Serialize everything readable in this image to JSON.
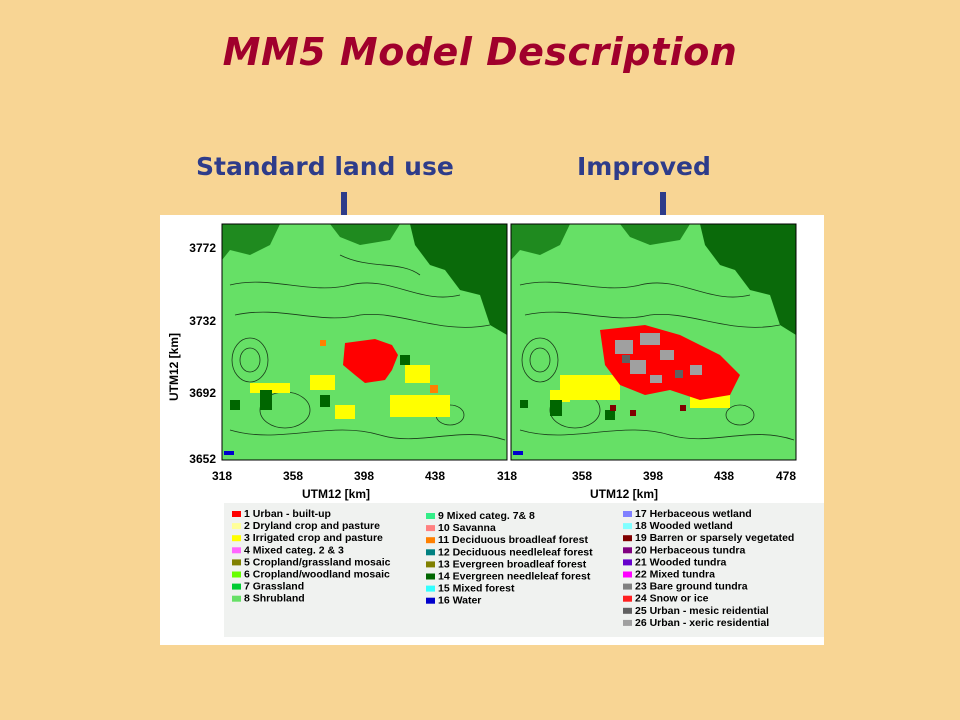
{
  "title": "MM5 Model Description",
  "panels": {
    "left_label": "Standard land use",
    "right_label": "Improved"
  },
  "axes": {
    "ylabel": "UTM12 [km]",
    "xlabel_left": "UTM12 [km]",
    "xlabel_right": "UTM12 [km]",
    "yticks": [
      "3772",
      "3732",
      "3692",
      "3652"
    ],
    "xticks_left": [
      "318",
      "358",
      "398",
      "438",
      "318"
    ],
    "xticks_right": [
      "358",
      "398",
      "438",
      "478"
    ]
  },
  "legend": {
    "column1": [
      {
        "label": "1 Urban - built-up",
        "color": "#ff0000"
      },
      {
        "label": "2 Dryland crop and pasture",
        "color": "#ffff99"
      },
      {
        "label": "3 Irrigated crop and pasture",
        "color": "#ffff00"
      },
      {
        "label": "4 Mixed categ. 2 & 3",
        "color": "#ff66ff"
      },
      {
        "label": "5 Cropland/grassland mosaic",
        "color": "#808000"
      },
      {
        "label": "6 Cropland/woodland mosaic",
        "color": "#66ff00"
      },
      {
        "label": "7 Grassland",
        "color": "#00cc33"
      },
      {
        "label": "8 Shrubland",
        "color": "#66e066"
      }
    ],
    "column2": [
      {
        "label": "9 Mixed categ. 7& 8",
        "color": "#33ee88"
      },
      {
        "label": "10 Savanna",
        "color": "#ff8080"
      },
      {
        "label": "11 Deciduous broadleaf forest",
        "color": "#ff8000"
      },
      {
        "label": "12 Deciduous needleleaf forest",
        "color": "#008080"
      },
      {
        "label": "13 Evergreen broadleaf forest",
        "color": "#808000"
      },
      {
        "label": "14 Evergreen needleleaf forest",
        "color": "#006600"
      },
      {
        "label": "15 Mixed forest",
        "color": "#33ffff"
      },
      {
        "label": "16 Water",
        "color": "#0000cc"
      }
    ],
    "column3": [
      {
        "label": "17 Herbaceous wetland",
        "color": "#8080ff"
      },
      {
        "label": "18 Wooded wetland",
        "color": "#80ffff"
      },
      {
        "label": "19 Barren or sparsely vegetated",
        "color": "#800000"
      },
      {
        "label": "20 Herbaceous tundra",
        "color": "#800080"
      },
      {
        "label": "21 Wooded tundra",
        "color": "#6600cc"
      },
      {
        "label": "22 Mixed tundra",
        "color": "#ff00ff"
      },
      {
        "label": "23 Bare ground tundra",
        "color": "#808080"
      },
      {
        "label": "24 Snow or ice",
        "color": "#ff2020"
      },
      {
        "label": "25 Urban - mesic reidential",
        "color": "#606060"
      },
      {
        "label": "26 Urban - xeric residential",
        "color": "#a0a0a0"
      }
    ]
  },
  "colors": {
    "background": "#f8d594",
    "title": "#a0002c",
    "subtitle": "#2e3c8a",
    "land": "#66e066",
    "forest": "#006600",
    "urban": "#ff0000"
  }
}
